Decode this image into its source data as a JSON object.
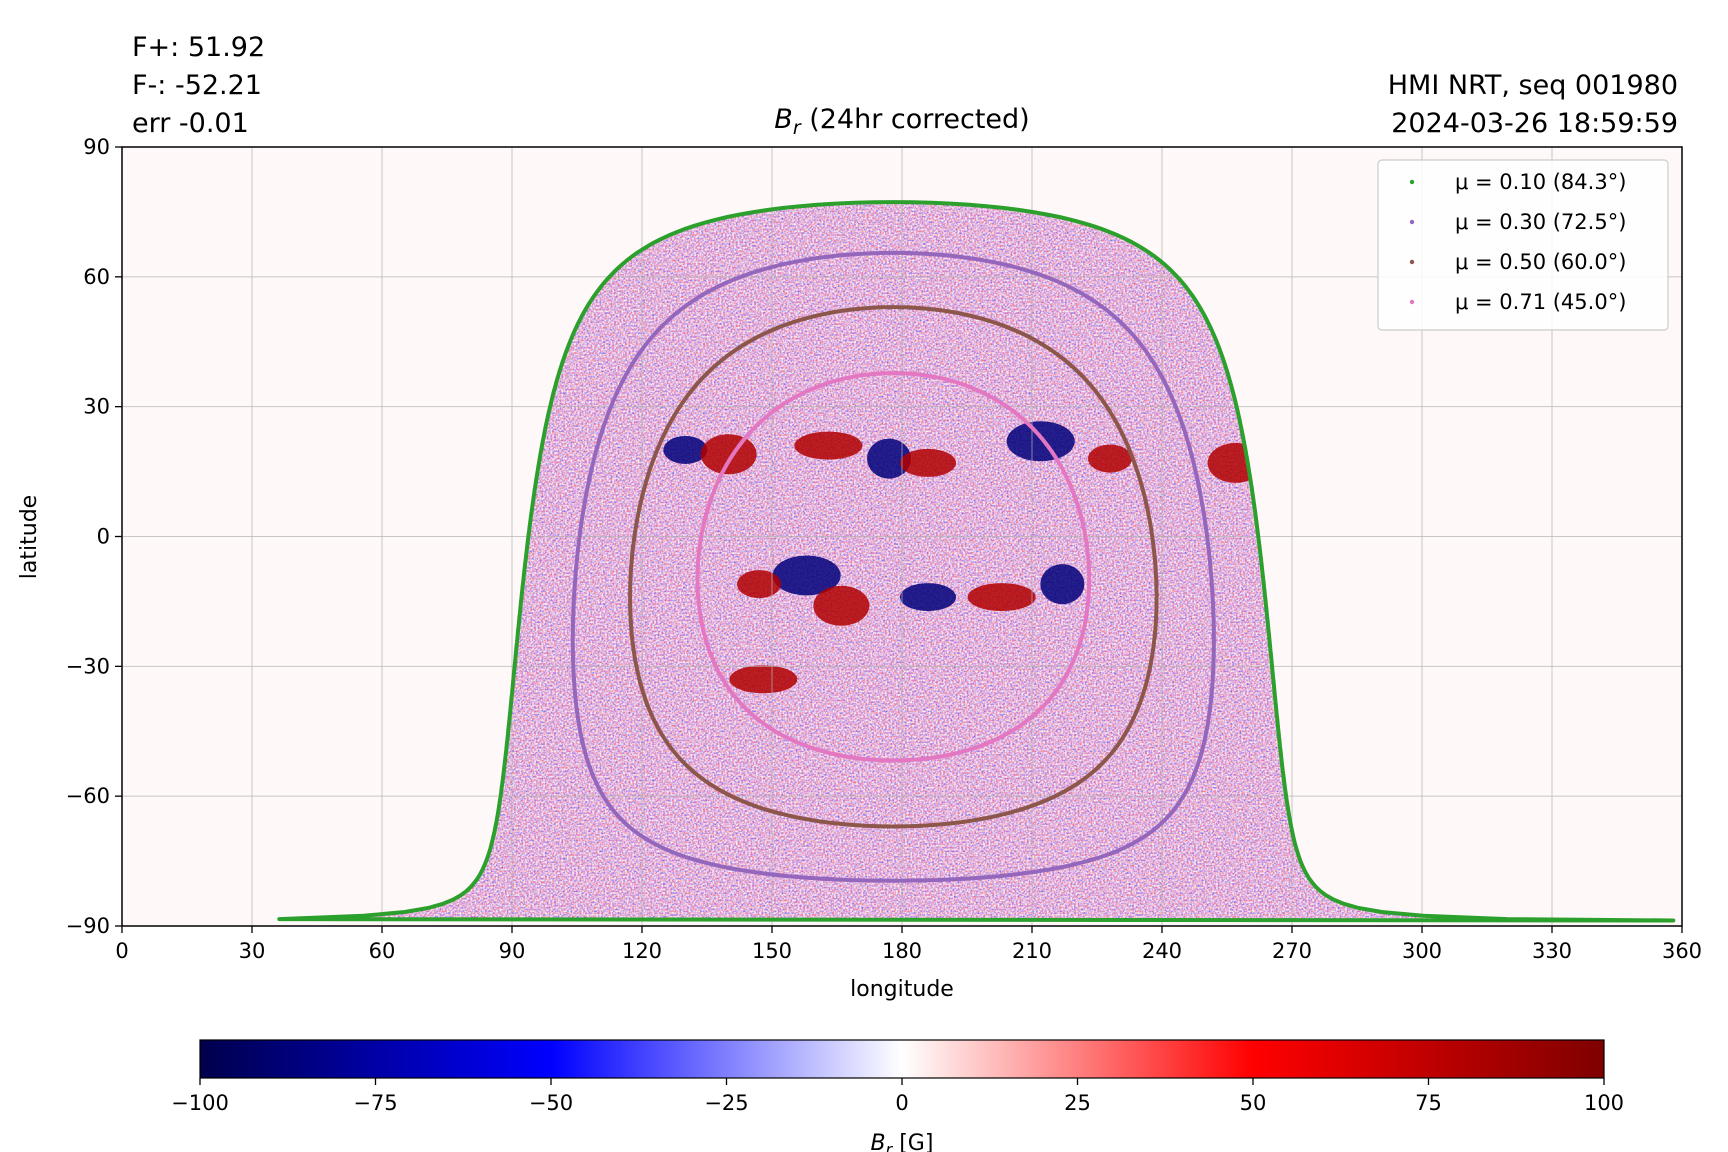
{
  "stats": {
    "fplus": "F+: 51.92",
    "fminus": "F-: -52.21",
    "err": "err -0.01"
  },
  "header": {
    "instrument": "HMI NRT, seq 001980",
    "datetime": "2024-03-26 18:59:59"
  },
  "chart_data": {
    "type": "heatmap",
    "title": "B_r (24hr corrected)",
    "title_symbol": "B",
    "title_subscript": "r",
    "title_suffix": " (24hr corrected)",
    "xlabel": "longitude",
    "ylabel": "latitude",
    "xlim": [
      0,
      360
    ],
    "ylim": [
      -90,
      90
    ],
    "xticks": [
      0,
      30,
      60,
      90,
      120,
      150,
      180,
      210,
      240,
      270,
      300,
      330,
      360
    ],
    "yticks": [
      90,
      60,
      30,
      0,
      -30,
      -60,
      -90
    ],
    "ytick_labels": [
      "90",
      "60",
      "30",
      "0",
      "−30",
      "−60",
      "−90"
    ],
    "grid": true,
    "legend_position": "top-right",
    "disk_center_longitude": 178,
    "disk_center_latitude": -7,
    "contours": [
      {
        "label": "μ = 0.10 (84.3°)",
        "mu": 0.1,
        "angle": 84.3,
        "color": "#2ca02c"
      },
      {
        "label": "μ = 0.30 (72.5°)",
        "mu": 0.3,
        "angle": 72.5,
        "color": "#9467bd"
      },
      {
        "label": "μ = 0.50 (60.0°)",
        "mu": 0.5,
        "angle": 60.0,
        "color": "#8c564b"
      },
      {
        "label": "μ = 0.71 (45.0°)",
        "mu": 0.71,
        "angle": 45.0,
        "color": "#e377c2"
      }
    ],
    "active_regions": [
      {
        "lon": 130,
        "lat": 20,
        "polarity": "negative"
      },
      {
        "lon": 140,
        "lat": 19,
        "polarity": "positive"
      },
      {
        "lon": 163,
        "lat": 21,
        "polarity": "positive"
      },
      {
        "lon": 177,
        "lat": 18,
        "polarity": "negative"
      },
      {
        "lon": 186,
        "lat": 17,
        "polarity": "positive"
      },
      {
        "lon": 212,
        "lat": 22,
        "polarity": "negative"
      },
      {
        "lon": 228,
        "lat": 18,
        "polarity": "positive"
      },
      {
        "lon": 257,
        "lat": 17,
        "polarity": "positive"
      },
      {
        "lon": 203,
        "lat": -14,
        "polarity": "positive"
      },
      {
        "lon": 217,
        "lat": -11,
        "polarity": "negative"
      },
      {
        "lon": 186,
        "lat": -14,
        "polarity": "negative"
      },
      {
        "lon": 158,
        "lat": -9,
        "polarity": "negative"
      },
      {
        "lon": 147,
        "lat": -11,
        "polarity": "positive"
      },
      {
        "lon": 166,
        "lat": -16,
        "polarity": "positive"
      },
      {
        "lon": 148,
        "lat": -33,
        "polarity": "positive"
      }
    ],
    "colorbar": {
      "label_symbol": "B",
      "label_subscript": "r",
      "label_suffix": " [G]",
      "min": -100,
      "max": 100,
      "ticks": [
        -100,
        -75,
        -50,
        -25,
        0,
        25,
        50,
        75,
        100
      ],
      "tick_labels": [
        "−100",
        "−75",
        "−50",
        "−25",
        "0",
        "25",
        "50",
        "75",
        "100"
      ],
      "colormap": "seismic",
      "colors": [
        "#00004c",
        "#0000ff",
        "#ffffff",
        "#ff0000",
        "#7f0000"
      ]
    }
  }
}
